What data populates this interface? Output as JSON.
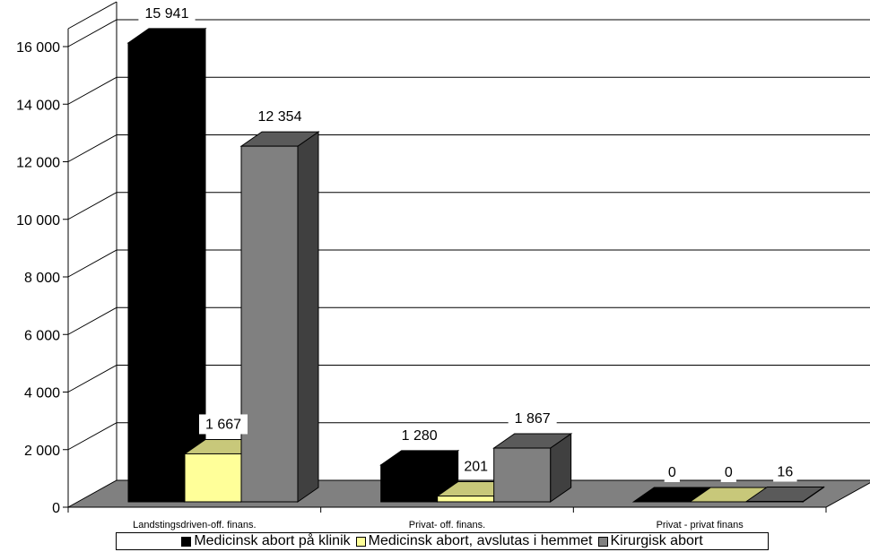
{
  "chart_data": {
    "type": "bar",
    "categories": [
      "Landstingsdriven-off. finans.",
      "Privat- off. finans.",
      "Privat - privat finans"
    ],
    "series": [
      {
        "name": "Medicinsk abort på klinik",
        "values": [
          15941,
          1280,
          0
        ],
        "labels": [
          "15 941",
          "1 280",
          "0"
        ]
      },
      {
        "name": "Medicinsk abort, avslutas i hemmet",
        "values": [
          1667,
          201,
          0
        ],
        "labels": [
          "1 667",
          "201",
          "0"
        ]
      },
      {
        "name": "Kirurgisk abort",
        "values": [
          12354,
          1867,
          16
        ],
        "labels": [
          "12 354",
          "1 867",
          "16"
        ]
      }
    ],
    "yticks": [
      0,
      2000,
      4000,
      6000,
      8000,
      10000,
      12000,
      14000,
      16000
    ],
    "ytick_labels": [
      "0",
      "2 000",
      "4 000",
      "6 000",
      "8 000",
      "10 000",
      "12 000",
      "14 000",
      "16 000"
    ],
    "ylim": [
      0,
      16000
    ],
    "grid": true,
    "legend_position": "bottom",
    "colors": {
      "series": [
        "#000000",
        "#ffff99",
        "#808080"
      ],
      "tops": [
        "#000000",
        "#c8c87a",
        "#5a5a5a"
      ],
      "sides": [
        "#000000",
        "#b3b35c",
        "#404040"
      ],
      "floor": "#808080",
      "grid": "#000000"
    }
  }
}
